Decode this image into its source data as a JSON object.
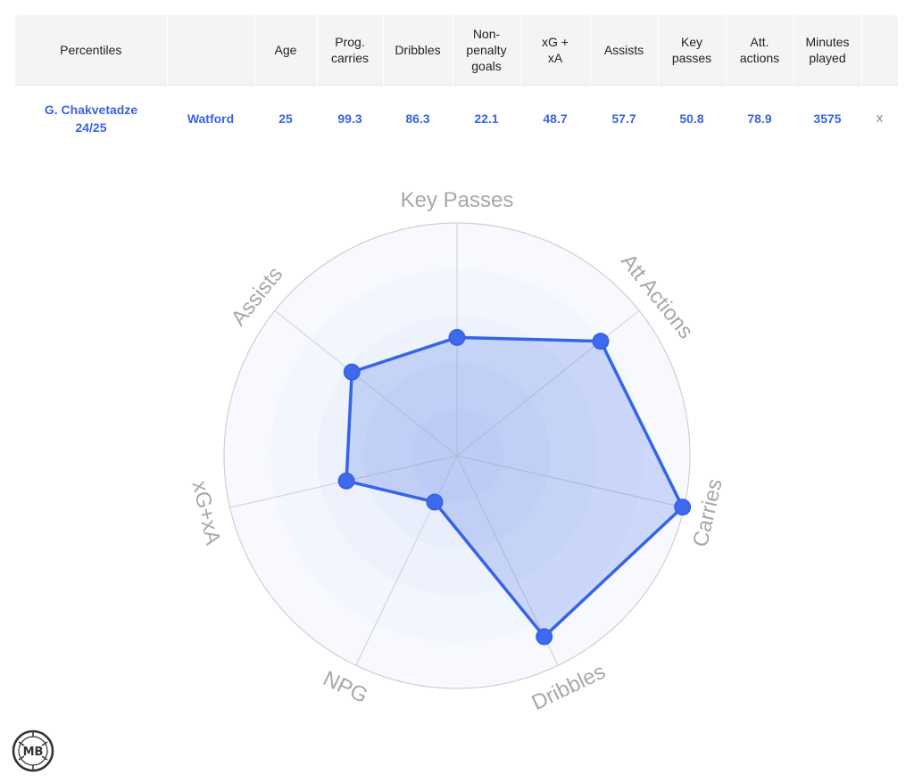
{
  "table": {
    "headers": {
      "percentiles": "Percentiles",
      "age": "Age",
      "prog_carries": [
        "Prog.",
        "carries"
      ],
      "dribbles": "Dribbles",
      "npg": [
        "Non-",
        "penalty",
        "goals"
      ],
      "xgxa": [
        "xG +",
        "xA"
      ],
      "assists": "Assists",
      "key_passes": [
        "Key",
        "passes"
      ],
      "att_actions": [
        "Att.",
        "actions"
      ],
      "minutes": [
        "Minutes",
        "played"
      ]
    },
    "row": {
      "player": "G. Chakvetadze",
      "season": "24/25",
      "team": "Watford",
      "age": "25",
      "prog_carries": "99.3",
      "dribbles": "86.3",
      "npg": "22.1",
      "xgxa": "48.7",
      "assists": "57.7",
      "key_passes": "50.8",
      "att_actions": "78.9",
      "minutes": "3575",
      "remove": "x"
    }
  },
  "chart_data": {
    "type": "radar",
    "axes": [
      "Key Passes",
      "Att Actions",
      "Carries",
      "Dribbles",
      "NPG",
      "xG+xA",
      "Assists"
    ],
    "series": [
      {
        "values": [
          50.8,
          78.9,
          99.3,
          86.3,
          22.1,
          48.7,
          57.7
        ]
      }
    ],
    "range": [
      0,
      100
    ],
    "rings": 5,
    "colors": {
      "line": "#3563e9",
      "fill": "#3563e9",
      "grid": "#d0d0d0",
      "label": "#a8a8a8"
    }
  },
  "logo": {
    "text": "MB"
  }
}
